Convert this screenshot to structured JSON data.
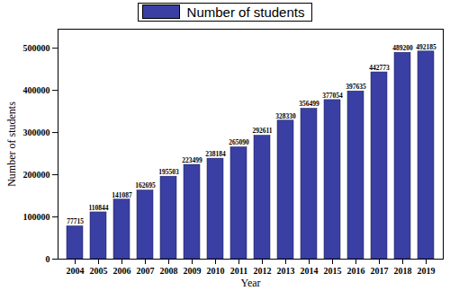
{
  "chart_data": {
    "type": "bar",
    "categories": [
      "2004",
      "2005",
      "2006",
      "2007",
      "2008",
      "2009",
      "2010",
      "2011",
      "2012",
      "2013",
      "2014",
      "2015",
      "2016",
      "2017",
      "2018",
      "2019"
    ],
    "series": [
      {
        "name": "Number of students",
        "color": "#3a3fa3",
        "values": [
          77715,
          110844,
          141087,
          162695,
          195503,
          223499,
          238184,
          265090,
          292611,
          328330,
          356499,
          377054,
          397635,
          442773,
          489200,
          492185
        ]
      }
    ],
    "x_label": "Year",
    "y_label": "Number of students",
    "ylim": [
      0,
      545000
    ],
    "yticks": [
      0,
      100000,
      200000,
      300000,
      400000,
      500000
    ],
    "data_labels": true,
    "legend": "top",
    "grid": false
  }
}
